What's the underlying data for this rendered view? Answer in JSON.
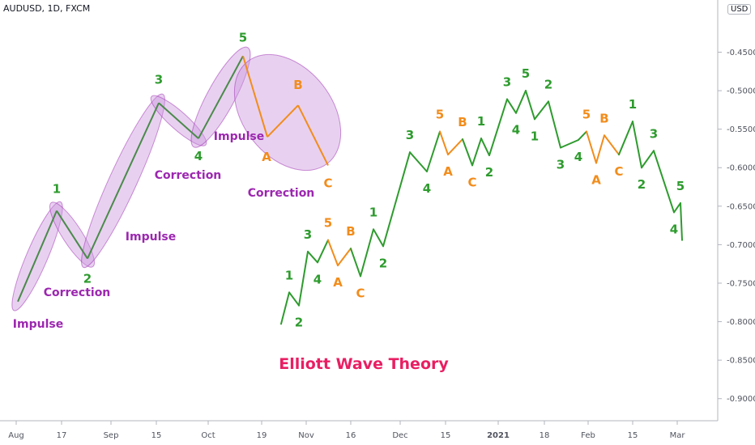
{
  "header": {
    "symbol": "AUDUSD, 1D, FXCM",
    "currency": "USD"
  },
  "chart_data": {
    "type": "line",
    "title": "Elliott Wave Theory",
    "y_axis": {
      "ticks": [
        "-0.45000",
        "-0.50000",
        "-0.55000",
        "-0.60000",
        "-0.65000",
        "-0.70000",
        "-0.75000",
        "-0.80000",
        "-0.85000",
        "-0.90000"
      ],
      "range": [
        -0.93,
        -0.39
      ]
    },
    "x_axis": {
      "ticks": [
        "Aug",
        "17",
        "Sep",
        "15",
        "Oct",
        "19",
        "Nov",
        "16",
        "Dec",
        "15",
        "2021",
        "18",
        "Feb",
        "15",
        "Mar"
      ]
    },
    "colors": {
      "green": "#2e9b2e",
      "orange": "#f28c1b",
      "purple": "#9c27b0",
      "ellipse_fill": "#cc99dd",
      "title": "#e91e63",
      "schematic_line": "#4a8a4a"
    },
    "schematic": {
      "points": [
        {
          "label": "",
          "y": -0.774
        },
        {
          "label": "1",
          "y": -0.656
        },
        {
          "label": "2",
          "y": -0.718
        },
        {
          "label": "3",
          "y": -0.516
        },
        {
          "label": "4",
          "y": -0.562
        },
        {
          "label": "5",
          "y": -0.455
        },
        {
          "label": "A",
          "y": -0.56
        },
        {
          "label": "B",
          "y": -0.519
        },
        {
          "label": "C",
          "y": -0.597
        }
      ],
      "phase_labels": [
        "Impulse",
        "Correction",
        "Impulse",
        "Correction",
        "Impulse",
        "Correction"
      ]
    },
    "series": [
      {
        "color": "green",
        "points": [
          {
            "label": "",
            "y": -0.803
          },
          {
            "label": "1",
            "y": -0.762
          },
          {
            "label": "2",
            "y": -0.779
          },
          {
            "label": "3",
            "y": -0.709
          },
          {
            "label": "4",
            "y": -0.723
          },
          {
            "label": "5",
            "y": -0.694,
            "color": "orange"
          },
          {
            "label": "A",
            "y": -0.727,
            "color": "orange"
          },
          {
            "label": "B",
            "y": -0.705,
            "color": "orange"
          },
          {
            "label": "C",
            "y": -0.741
          },
          {
            "label": "1",
            "y": -0.68
          },
          {
            "label": "2",
            "y": -0.702
          },
          {
            "label": "3",
            "y": -0.58
          },
          {
            "label": "4",
            "y": -0.605
          },
          {
            "label": "5",
            "y": -0.553,
            "color": "orange"
          },
          {
            "label": "A",
            "y": -0.583,
            "color": "orange"
          },
          {
            "label": "B",
            "y": -0.563,
            "color": "orange"
          },
          {
            "label": "C",
            "y": -0.597
          },
          {
            "label": "1",
            "y": -0.562
          },
          {
            "label": "2",
            "y": -0.584
          },
          {
            "label": "3",
            "y": -0.511
          },
          {
            "label": "4",
            "y": -0.529
          },
          {
            "label": "5",
            "y": -0.5
          },
          {
            "label": "1",
            "y": -0.537
          },
          {
            "label": "2",
            "y": -0.514
          },
          {
            "label": "3",
            "y": -0.574
          },
          {
            "label": "4",
            "y": -0.564
          },
          {
            "label": "5",
            "y": -0.553,
            "color": "orange"
          },
          {
            "label": "A",
            "y": -0.594,
            "color": "orange"
          },
          {
            "label": "B",
            "y": -0.558,
            "color": "orange"
          },
          {
            "label": "C",
            "y": -0.583,
            "color": "orange"
          },
          {
            "label": "1",
            "y": -0.54
          },
          {
            "label": "2",
            "y": -0.6
          },
          {
            "label": "3",
            "y": -0.578
          },
          {
            "label": "4",
            "y": -0.658
          },
          {
            "label": "5",
            "y": -0.646
          },
          {
            "label": "",
            "y": -0.694
          }
        ]
      }
    ]
  }
}
